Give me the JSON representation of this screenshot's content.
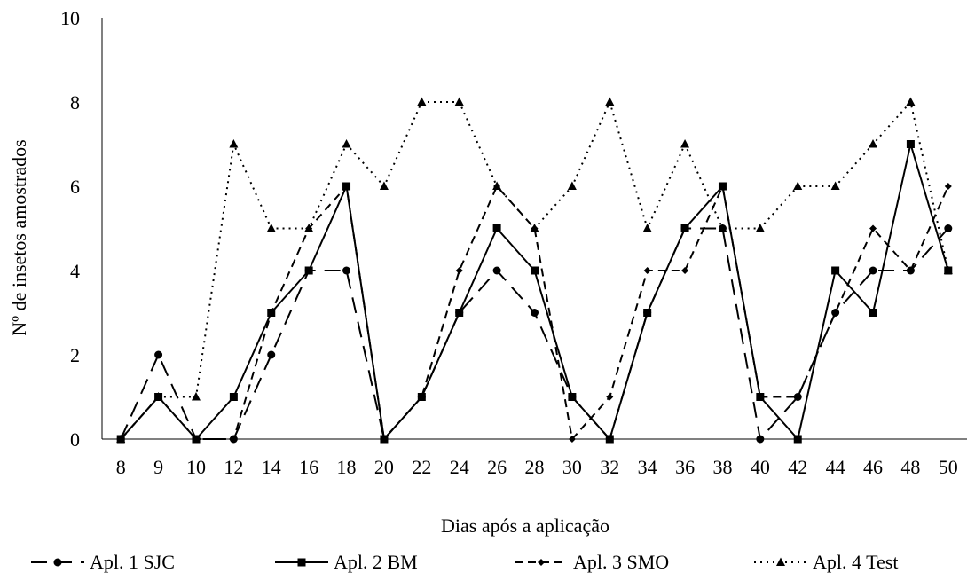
{
  "chart_data": {
    "type": "line",
    "title": "",
    "xlabel": "Dias após a aplicação",
    "ylabel": "Nº de insetos amostrados",
    "ylim": [
      0,
      10
    ],
    "yticks": [
      0,
      2,
      4,
      6,
      8,
      10
    ],
    "grid": false,
    "legend_position": "bottom",
    "categories": [
      "8",
      "9",
      "10",
      "12",
      "14",
      "16",
      "18",
      "20",
      "22",
      "24",
      "26",
      "28",
      "30",
      "32",
      "34",
      "36",
      "38",
      "40",
      "42",
      "44",
      "46",
      "48",
      "50"
    ],
    "series": [
      {
        "name": "Apl. 1 SJC",
        "values": [
          0,
          2,
          0,
          0,
          2,
          4,
          4,
          0,
          1,
          3,
          4,
          3,
          1,
          0,
          3,
          5,
          5,
          0,
          1,
          3,
          4,
          4,
          5
        ],
        "dash": "18,10",
        "marker": "circle",
        "color": "#000000"
      },
      {
        "name": "Apl. 2 BM",
        "values": [
          0,
          1,
          0,
          1,
          3,
          4,
          6,
          0,
          1,
          3,
          5,
          4,
          1,
          0,
          3,
          5,
          6,
          1,
          0,
          4,
          3,
          7,
          4
        ],
        "dash": "",
        "marker": "square",
        "color": "#000000"
      },
      {
        "name": "Apl. 3 SMO",
        "values": [
          0,
          1,
          0,
          0,
          3,
          5,
          6,
          0,
          1,
          4,
          6,
          5,
          0,
          1,
          4,
          4,
          6,
          1,
          1,
          3,
          5,
          4,
          6
        ],
        "dash": "9,6",
        "marker": "diamond",
        "color": "#000000"
      },
      {
        "name": "Apl. 4 Test",
        "values": [
          0,
          1,
          1,
          7,
          5,
          5,
          7,
          6,
          8,
          8,
          6,
          5,
          6,
          8,
          5,
          7,
          5,
          5,
          6,
          6,
          7,
          8,
          4
        ],
        "dash": "2,5",
        "marker": "triangle",
        "color": "#000000"
      }
    ]
  }
}
